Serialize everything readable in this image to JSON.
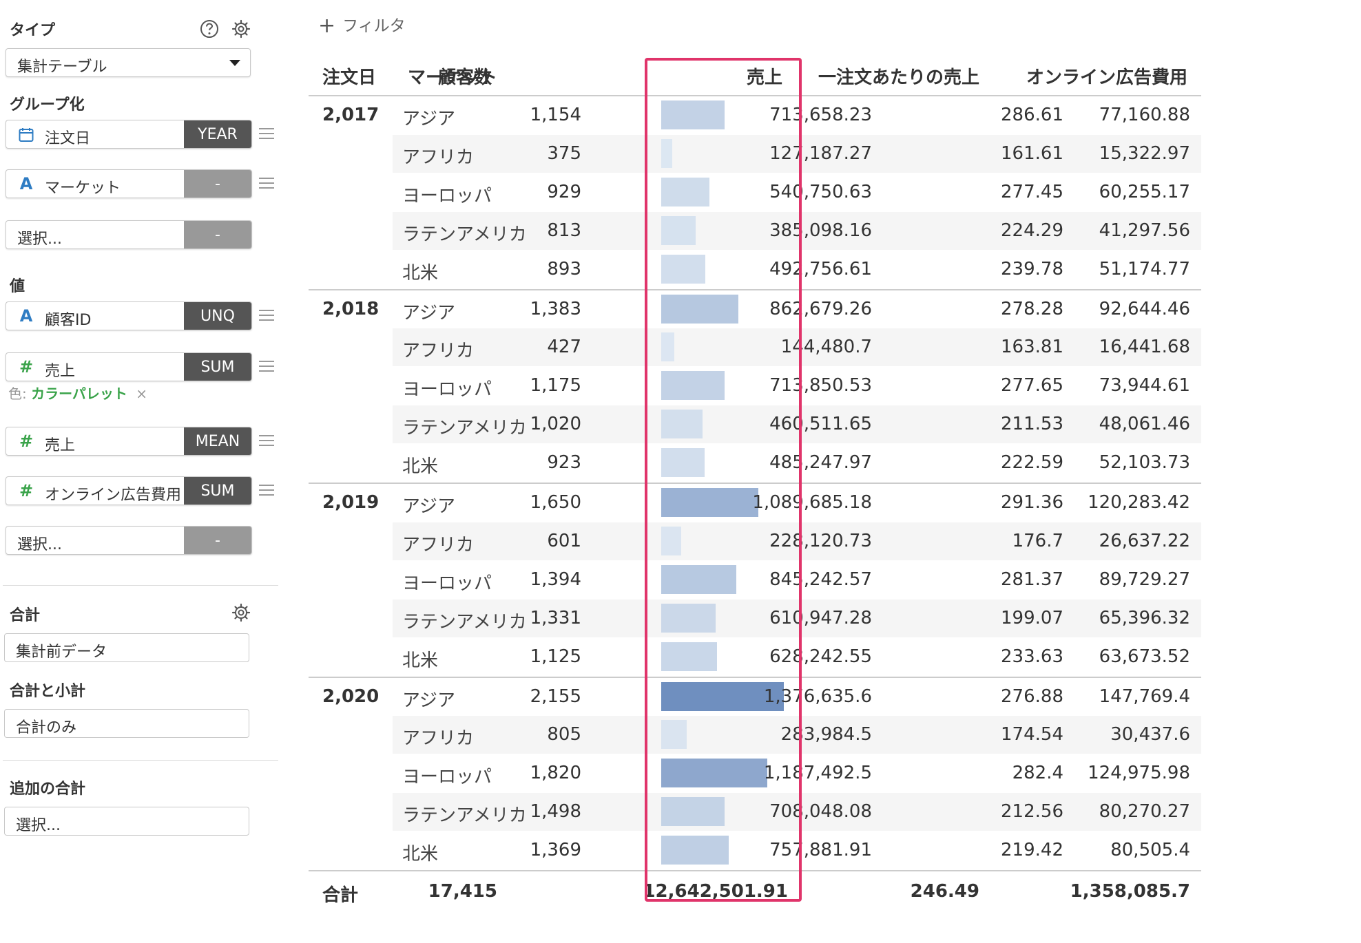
{
  "sidebar": {
    "type_label": "タイプ",
    "type_value": "集計テーブル",
    "group_label": "グループ化",
    "groups": [
      {
        "kind": "date",
        "name": "注文日",
        "agg": "YEAR"
      },
      {
        "kind": "str",
        "name": "マーケット",
        "agg": "-"
      },
      {
        "kind": "none",
        "name": "選択...",
        "agg": "-"
      }
    ],
    "value_label": "値",
    "values": [
      {
        "kind": "str",
        "icon": "A",
        "name": "顧客ID",
        "agg": "UNQ"
      },
      {
        "kind": "num",
        "icon": "#",
        "name": "売上",
        "agg": "SUM"
      },
      {
        "kind": "num",
        "icon": "#",
        "name": "売上",
        "agg": "MEAN"
      },
      {
        "kind": "num",
        "icon": "#",
        "name": "オンライン広告費用",
        "agg": "SUM"
      },
      {
        "kind": "none",
        "icon": "",
        "name": "選択...",
        "agg": "-"
      }
    ],
    "color_prefix": "色:",
    "color_value": "カラーパレット",
    "color_remove": "×",
    "total_label": "合計",
    "total_value": "集計前データ",
    "subtotal_label": "合計と小計",
    "subtotal_value": "合計のみ",
    "additional_label": "追加の合計",
    "additional_value": "選択..."
  },
  "filter": {
    "icon": "+",
    "label": "フィルタ"
  },
  "table": {
    "headers": [
      "注文日",
      "マーケット",
      "顧客数",
      "売上",
      "一注文あたりの売上",
      "オンライン広告費用"
    ],
    "groups": [
      {
        "year": "2,017",
        "rows": [
          {
            "market": "アジア",
            "customers": "1,154",
            "sales": "713,658.23",
            "sales_value": 713658.23,
            "avg": "286.61",
            "ad": "77,160.88"
          },
          {
            "market": "アフリカ",
            "customers": "375",
            "sales": "127,187.27",
            "sales_value": 127187.27,
            "avg": "161.61",
            "ad": "15,322.97"
          },
          {
            "market": "ヨーロッパ",
            "customers": "929",
            "sales": "540,750.63",
            "sales_value": 540750.63,
            "avg": "277.45",
            "ad": "60,255.17"
          },
          {
            "market": "ラテンアメリカ",
            "customers": "813",
            "sales": "385,098.16",
            "sales_value": 385098.16,
            "avg": "224.29",
            "ad": "41,297.56"
          },
          {
            "market": "北米",
            "customers": "893",
            "sales": "492,756.61",
            "sales_value": 492756.61,
            "avg": "239.78",
            "ad": "51,174.77"
          }
        ]
      },
      {
        "year": "2,018",
        "rows": [
          {
            "market": "アジア",
            "customers": "1,383",
            "sales": "862,679.26",
            "sales_value": 862679.26,
            "avg": "278.28",
            "ad": "92,644.46"
          },
          {
            "market": "アフリカ",
            "customers": "427",
            "sales": "144,480.7",
            "sales_value": 144480.7,
            "avg": "163.81",
            "ad": "16,441.68"
          },
          {
            "market": "ヨーロッパ",
            "customers": "1,175",
            "sales": "713,850.53",
            "sales_value": 713850.53,
            "avg": "277.65",
            "ad": "73,944.61"
          },
          {
            "market": "ラテンアメリカ",
            "customers": "1,020",
            "sales": "460,511.65",
            "sales_value": 460511.65,
            "avg": "211.53",
            "ad": "48,061.46"
          },
          {
            "market": "北米",
            "customers": "923",
            "sales": "485,247.97",
            "sales_value": 485247.97,
            "avg": "222.59",
            "ad": "52,103.73"
          }
        ]
      },
      {
        "year": "2,019",
        "rows": [
          {
            "market": "アジア",
            "customers": "1,650",
            "sales": "1,089,685.18",
            "sales_value": 1089685.18,
            "avg": "291.36",
            "ad": "120,283.42"
          },
          {
            "market": "アフリカ",
            "customers": "601",
            "sales": "228,120.73",
            "sales_value": 228120.73,
            "avg": "176.7",
            "ad": "26,637.22"
          },
          {
            "market": "ヨーロッパ",
            "customers": "1,394",
            "sales": "845,242.57",
            "sales_value": 845242.57,
            "avg": "281.37",
            "ad": "89,729.27"
          },
          {
            "market": "ラテンアメリカ",
            "customers": "1,331",
            "sales": "610,947.28",
            "sales_value": 610947.28,
            "avg": "199.07",
            "ad": "65,396.32"
          },
          {
            "market": "北米",
            "customers": "1,125",
            "sales": "628,242.55",
            "sales_value": 628242.55,
            "avg": "233.63",
            "ad": "63,673.52"
          }
        ]
      },
      {
        "year": "2,020",
        "rows": [
          {
            "market": "アジア",
            "customers": "2,155",
            "sales": "1,376,635.6",
            "sales_value": 1376635.6,
            "avg": "276.88",
            "ad": "147,769.4"
          },
          {
            "market": "アフリカ",
            "customers": "805",
            "sales": "283,984.5",
            "sales_value": 283984.5,
            "avg": "174.54",
            "ad": "30,437.6"
          },
          {
            "market": "ヨーロッパ",
            "customers": "1,820",
            "sales": "1,187,492.5",
            "sales_value": 1187492.5,
            "avg": "282.4",
            "ad": "124,975.98"
          },
          {
            "market": "ラテンアメリカ",
            "customers": "1,498",
            "sales": "708,048.08",
            "sales_value": 708048.08,
            "avg": "212.56",
            "ad": "80,270.27"
          },
          {
            "market": "北米",
            "customers": "1,369",
            "sales": "757,881.91",
            "sales_value": 757881.91,
            "avg": "219.42",
            "ad": "80,505.4"
          }
        ]
      }
    ],
    "total": {
      "label": "合計",
      "customers": "17,415",
      "sales": "12,642,501.91",
      "avg": "246.49",
      "ad": "1,358,085.7"
    }
  },
  "colors": {
    "highlight": "#e0346a",
    "bar_light": "#dde7f2",
    "bar_dark": "#6f8fbf",
    "accent_green": "#3aa34a",
    "accent_blue": "#2e7cc3"
  }
}
